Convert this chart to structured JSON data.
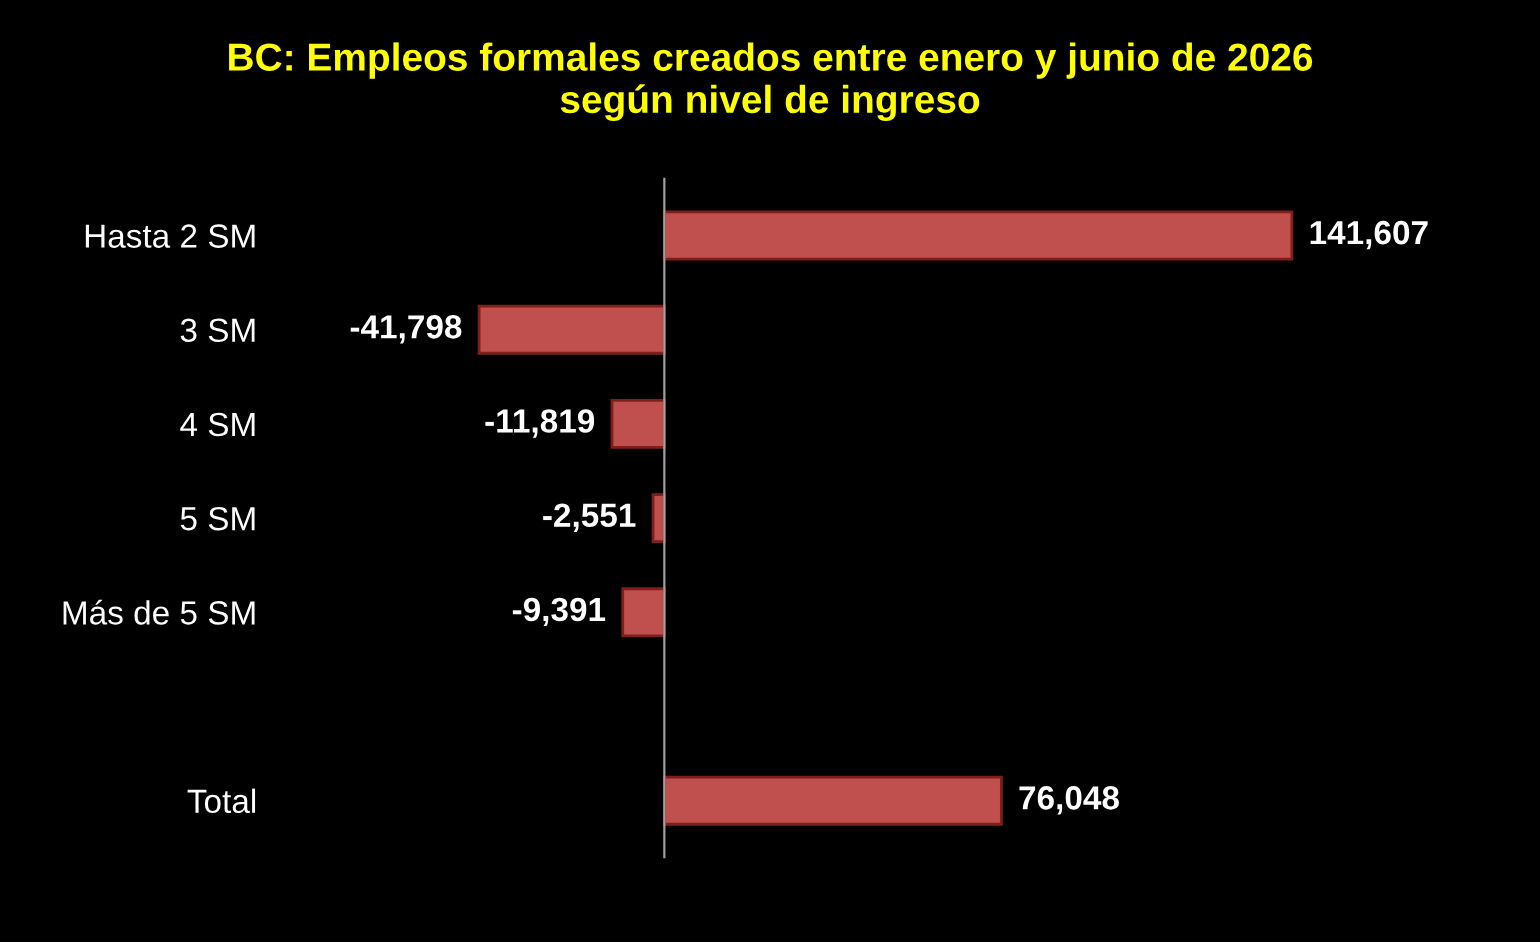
{
  "chart_data": {
    "type": "bar",
    "orientation": "horizontal",
    "title": "BC: Empleos formales creados entre enero y junio de 2026\nsegún nivel de ingreso",
    "categories": [
      "Hasta 2 SM",
      "3 SM",
      "4 SM",
      "5 SM",
      "Más de 5 SM",
      null,
      "Total"
    ],
    "values": [
      141607,
      -41798,
      -11819,
      -2551,
      -9391,
      null,
      76048
    ],
    "color": "#c0504d",
    "value_labels": [
      "141,607",
      "-41,798",
      "-11,819",
      "-2,551",
      "-9,391",
      null,
      "76,048"
    ],
    "tick_labels": "y"
  }
}
